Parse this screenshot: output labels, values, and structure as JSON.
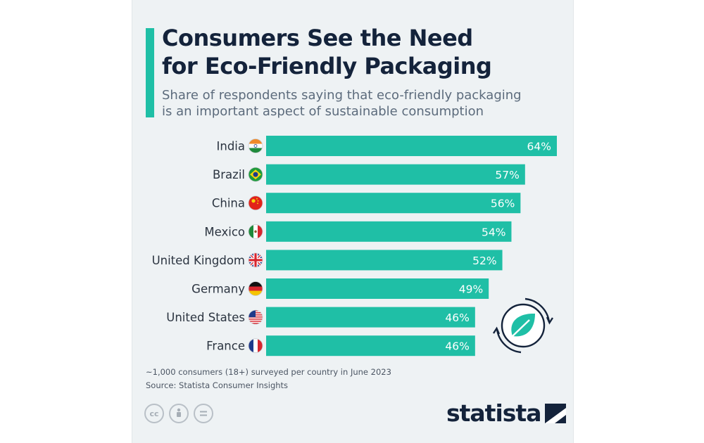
{
  "header": {
    "title_line1": "Consumers See the Need",
    "title_line2": "for Eco-Friendly Packaging",
    "subtitle_line1": "Share of respondents saying that eco-friendly packaging",
    "subtitle_line2": "is an important aspect of sustainable consumption"
  },
  "chart_data": {
    "type": "bar",
    "orientation": "horizontal",
    "title": "Consumers See the Need for Eco-Friendly Packaging",
    "subtitle": "Share of respondents saying that eco-friendly packaging is an important aspect of sustainable consumption",
    "categories": [
      "India",
      "Brazil",
      "China",
      "Mexico",
      "United Kingdom",
      "Germany",
      "United States",
      "France"
    ],
    "values": [
      64,
      57,
      56,
      54,
      52,
      49,
      46,
      46
    ],
    "value_labels": [
      "64%",
      "57%",
      "56%",
      "54%",
      "52%",
      "49%",
      "46%",
      "46%"
    ],
    "flags": [
      "india-flag",
      "brazil-flag",
      "china-flag",
      "mexico-flag",
      "uk-flag",
      "germany-flag",
      "usa-flag",
      "france-flag"
    ],
    "unit": "%",
    "xlim": [
      0,
      64
    ],
    "grid": false,
    "legend": "none"
  },
  "colors": {
    "bar": "#1fbfa6",
    "accent": "#1fbfa6",
    "title": "#14233b",
    "subtitle": "#5c6b7c",
    "label": "#2b3440",
    "value_label": "#ffffff",
    "background": "#eef2f4"
  },
  "decoration": {
    "icon": "leaf-recycle-icon"
  },
  "footer": {
    "note": "~1,000 consumers (18+) surveyed per country in June 2023",
    "source": "Source: Statista Consumer Insights",
    "cc_label": "cc",
    "brand": "statista"
  }
}
